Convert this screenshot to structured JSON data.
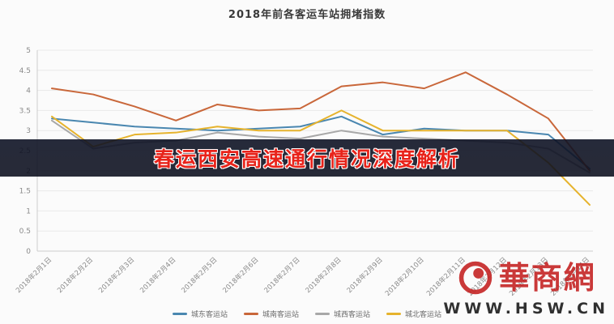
{
  "banner": {
    "text": "春运西安高速通行情况深度解析",
    "text_color": "#e8231a",
    "bg_color": "#0f1325"
  },
  "watermark": {
    "brand": "華商網",
    "url": "WWW.HSW.CN",
    "brand_color": "#c41f1f"
  },
  "chart_data": {
    "type": "line",
    "title": "2018年前各客运车站拥堵指数",
    "categories": [
      "2018年2月1日",
      "2018年2月2日",
      "2018年2月3日",
      "2018年2月4日",
      "2018年2月5日",
      "2018年2月6日",
      "2018年2月7日",
      "2018年2月8日",
      "2018年2月9日",
      "2018年2月10日",
      "2018年2月11日",
      "2018年2月12日",
      "2018年2月13日",
      "2018年2月14日"
    ],
    "series": [
      {
        "name": "城东客运站",
        "color": "#4a87b0",
        "values": [
          3.3,
          3.2,
          3.1,
          3.05,
          3.0,
          3.05,
          3.1,
          3.35,
          2.9,
          3.05,
          3.0,
          3.0,
          2.9,
          2.05
        ]
      },
      {
        "name": "城南客运站",
        "color": "#c9673a",
        "values": [
          4.05,
          3.9,
          3.6,
          3.25,
          3.65,
          3.5,
          3.55,
          4.1,
          4.2,
          4.05,
          4.45,
          3.9,
          3.3,
          2.0
        ]
      },
      {
        "name": "城西客运站",
        "color": "#a8a8a8",
        "values": [
          3.25,
          2.55,
          2.7,
          2.75,
          2.95,
          2.85,
          2.8,
          3.0,
          2.85,
          2.8,
          2.75,
          2.7,
          2.55,
          1.95
        ]
      },
      {
        "name": "城北客运站",
        "color": "#e6b32d",
        "values": [
          3.35,
          2.6,
          2.9,
          2.95,
          3.1,
          3.0,
          3.0,
          3.5,
          3.0,
          3.0,
          3.0,
          3.0,
          2.2,
          1.15
        ]
      }
    ],
    "ylim": [
      0,
      5
    ],
    "ytick_step": 0.5,
    "grid": true,
    "legend_position": "bottom"
  }
}
